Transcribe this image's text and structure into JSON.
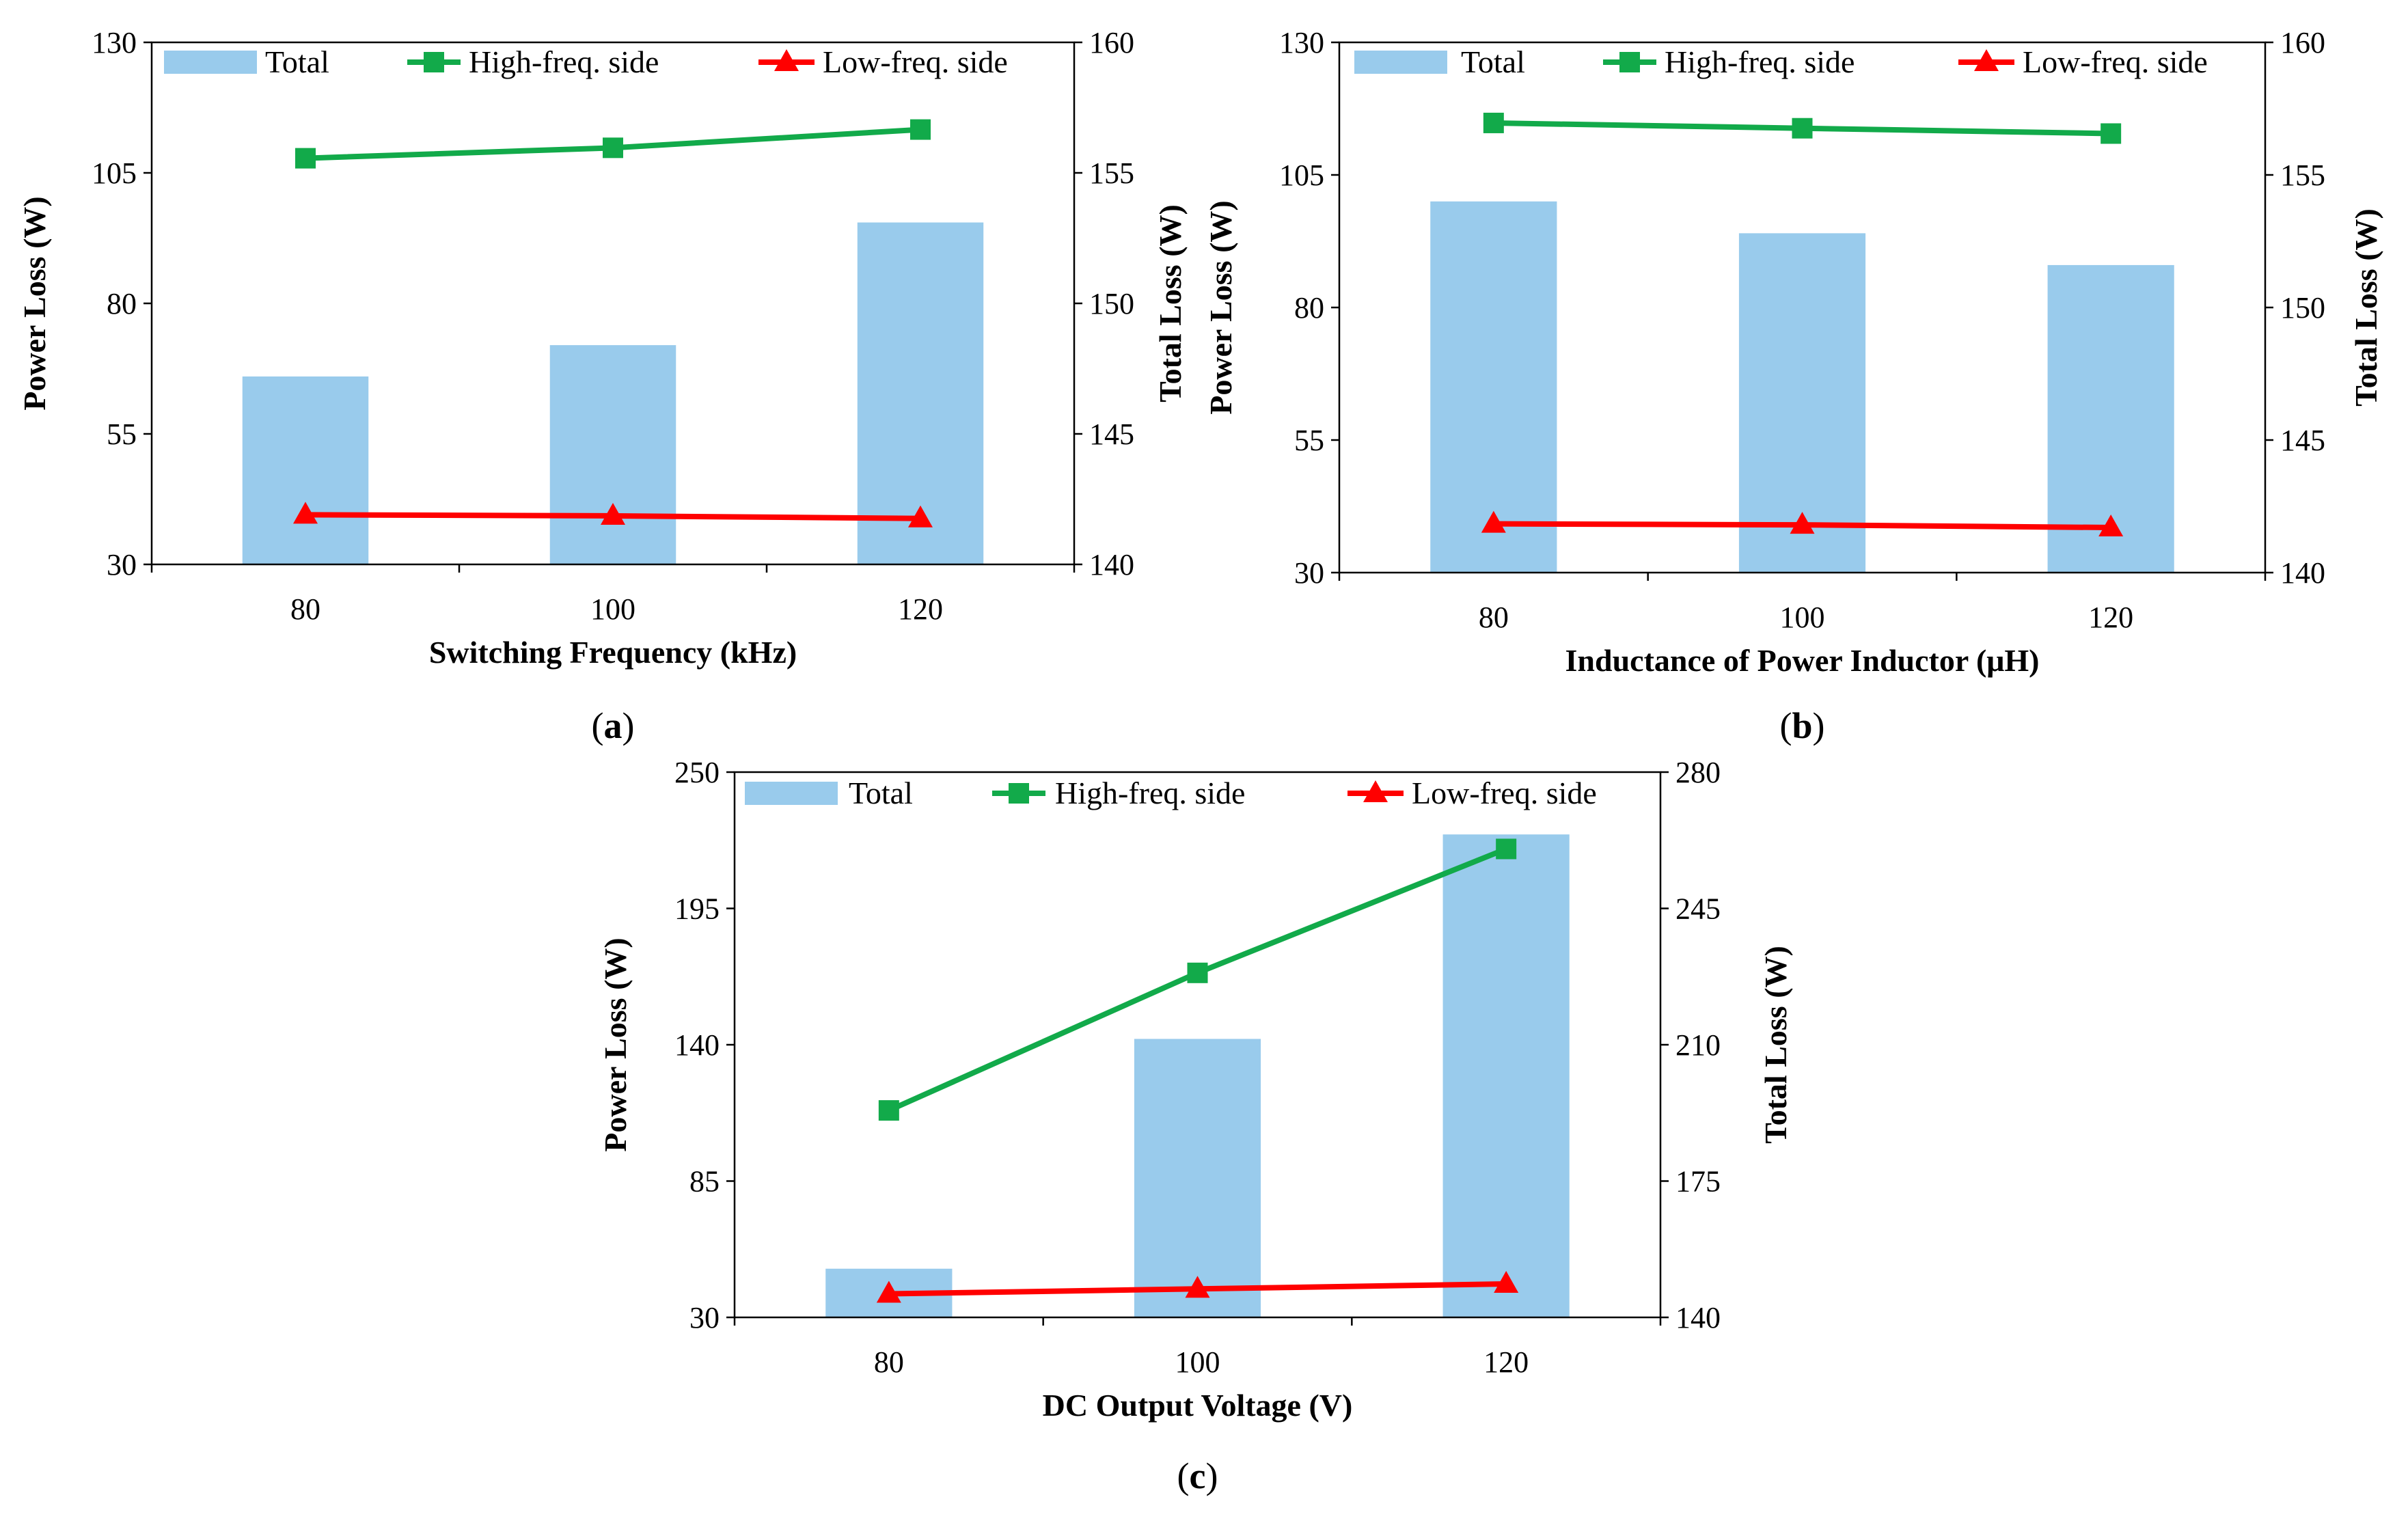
{
  "figure": {
    "legend": {
      "total": "Total",
      "high": "High-freq. side",
      "low": "Low-freq. side"
    },
    "colors": {
      "bar": "#99cbec",
      "high": "#12aa4a",
      "low": "#ff0000",
      "axis": "#000000"
    }
  },
  "chart_data": [
    {
      "id": "a",
      "type": "bar+line",
      "caption": {
        "open": "(",
        "letter": "a",
        "close": ")"
      },
      "xlabel": "Switching Frequency (kHz)",
      "ylabel": "Power Loss (W)",
      "y2label": "Total Loss (W)",
      "categories": [
        "80",
        "100",
        "120"
      ],
      "ylim": [
        30,
        130
      ],
      "yticks": [
        30,
        55,
        80,
        105,
        130
      ],
      "y2lim": [
        140,
        160
      ],
      "y2ticks": [
        140,
        145,
        150,
        155,
        160
      ],
      "total": {
        "name": "Total",
        "axis": "right",
        "values": [
          147.2,
          148.4,
          153.1
        ]
      },
      "series": [
        {
          "name": "High-freq. side",
          "axis": "left",
          "marker": "square",
          "values": [
            107.8,
            109.8,
            113.3
          ]
        },
        {
          "name": "Low-freq. side",
          "axis": "left",
          "marker": "triangle",
          "values": [
            39.5,
            39.3,
            38.8
          ]
        }
      ]
    },
    {
      "id": "b",
      "type": "bar+line",
      "caption": {
        "open": "(",
        "letter": "b",
        "close": ")"
      },
      "xlabel": "Inductance of Power Inductor (μH)",
      "ylabel": "Power Loss (W)",
      "y2label": "Total Loss (W)",
      "categories": [
        "80",
        "100",
        "120"
      ],
      "ylim": [
        30,
        130
      ],
      "yticks": [
        30,
        55,
        80,
        105,
        130
      ],
      "y2lim": [
        140,
        160
      ],
      "y2ticks": [
        140,
        145,
        150,
        155,
        160
      ],
      "total": {
        "name": "Total",
        "axis": "right",
        "values": [
          154.0,
          152.8,
          151.6
        ]
      },
      "series": [
        {
          "name": "High-freq. side",
          "axis": "left",
          "marker": "square",
          "values": [
            114.8,
            113.8,
            112.8
          ]
        },
        {
          "name": "Low-freq. side",
          "axis": "left",
          "marker": "triangle",
          "values": [
            39.2,
            39.0,
            38.5
          ]
        }
      ]
    },
    {
      "id": "c",
      "type": "bar+line",
      "caption": {
        "open": "(",
        "letter": "c",
        "close": ")"
      },
      "xlabel": "DC Output Voltage (V)",
      "ylabel": "Power Loss (W)",
      "y2label": "Total Loss (W)",
      "categories": [
        "80",
        "100",
        "120"
      ],
      "ylim": [
        30,
        250
      ],
      "yticks": [
        30,
        85,
        140,
        195,
        250
      ],
      "y2lim": [
        140,
        280
      ],
      "y2ticks": [
        140,
        175,
        210,
        245,
        280
      ],
      "total": {
        "name": "Total",
        "axis": "right",
        "values": [
          152.5,
          211.5,
          264.0
        ]
      },
      "series": [
        {
          "name": "High-freq. side",
          "axis": "left",
          "marker": "square",
          "values": [
            113.5,
            169.0,
            219.0
          ]
        },
        {
          "name": "Low-freq. side",
          "axis": "left",
          "marker": "triangle",
          "values": [
            39.5,
            41.5,
            43.5
          ]
        }
      ]
    }
  ]
}
